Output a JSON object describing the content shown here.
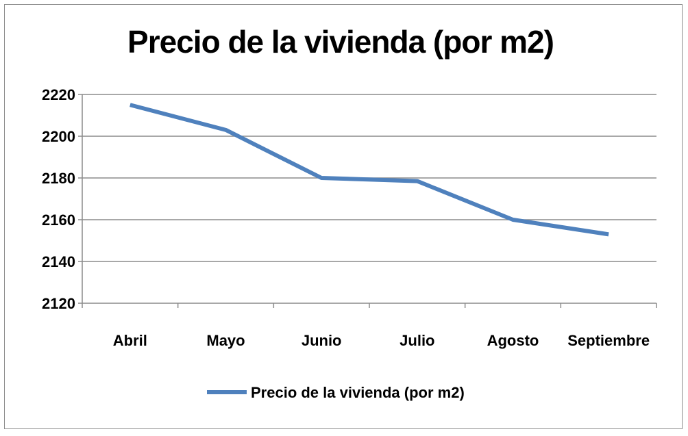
{
  "chart_data": {
    "type": "line",
    "title": "Precio de la vivienda (por m2)",
    "categories": [
      "Abril",
      "Mayo",
      "Junio",
      "Julio",
      "Agosto",
      "Septiembre"
    ],
    "series": [
      {
        "name": "Precio de la vivienda (por m2)",
        "values": [
          2215,
          2203,
          2180,
          2178.5,
          2160,
          2153
        ],
        "color": "#4F81BD"
      }
    ],
    "ylim": [
      2120,
      2220
    ],
    "yticks": [
      2120,
      2140,
      2160,
      2180,
      2200,
      2220
    ],
    "grid": true,
    "legend_position": "bottom"
  }
}
